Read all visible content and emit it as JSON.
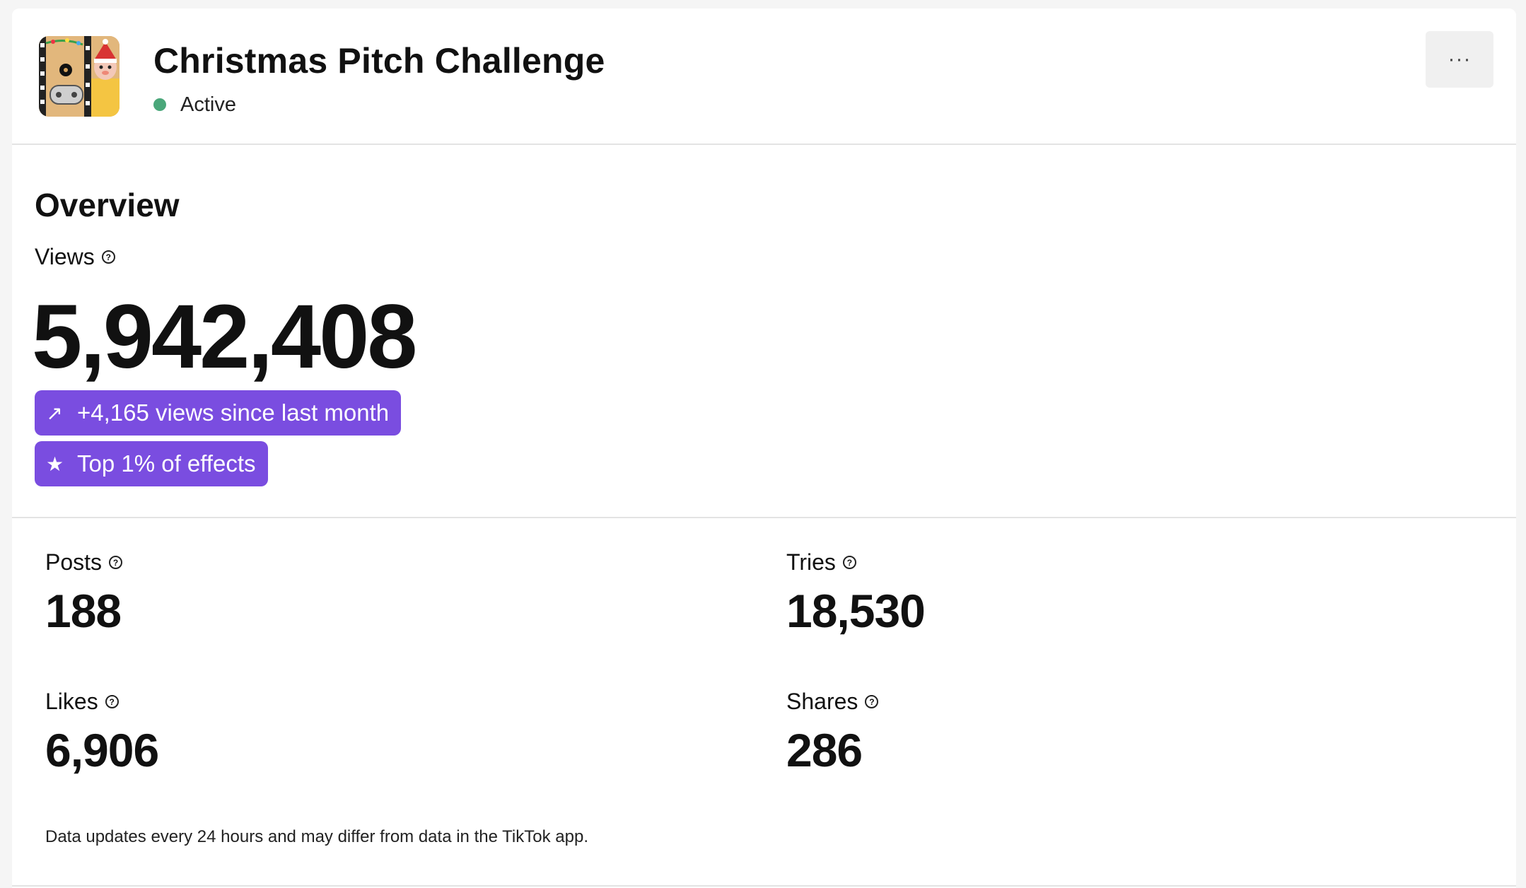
{
  "header": {
    "title": "Christmas Pitch Challenge",
    "status": "Active",
    "status_color": "#4aa77a",
    "thumbnail_icon": "effect-thumbnail-image",
    "more_label": "···"
  },
  "overview": {
    "title": "Overview",
    "views_label": "Views",
    "views_value": "5,942,408",
    "growth_badge": {
      "icon": "trend-up-arrow-icon",
      "text": "+4,165 views since last month"
    },
    "rank_badge": {
      "icon": "star-icon",
      "text": "Top 1% of effects"
    },
    "badge_color": "#7a4de0"
  },
  "stats": {
    "posts": {
      "label": "Posts",
      "value": "188"
    },
    "tries": {
      "label": "Tries",
      "value": "18,530"
    },
    "likes": {
      "label": "Likes",
      "value": "6,906"
    },
    "shares": {
      "label": "Shares",
      "value": "286"
    }
  },
  "footnote": "Data updates every 24 hours and may differ from data in the TikTok app."
}
